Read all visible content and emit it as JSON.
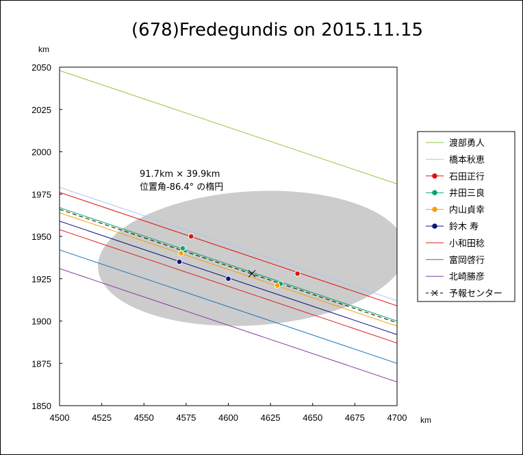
{
  "chart_data": {
    "type": "line",
    "title": "(678)Fredegundis on 2015.11.15",
    "xlabel": "km",
    "ylabel": "km",
    "xlim": [
      4500,
      4700
    ],
    "ylim": [
      1850,
      2050
    ],
    "xticks": [
      4500,
      4525,
      4550,
      4575,
      4600,
      4625,
      4650,
      4675,
      4700
    ],
    "yticks": [
      1850,
      1875,
      1900,
      1925,
      1950,
      1975,
      2000,
      2025,
      2050
    ],
    "grid": false,
    "legend_position": "right",
    "annotation": [
      "91.7km × 39.9km",
      "位置角-86.4° の楕円"
    ],
    "ellipse": {
      "center": [
        4614,
        1937
      ],
      "rx": 91.7,
      "ry": 39.9,
      "rotation_deg": -3.6,
      "fill": "#cccccc",
      "label": "91.7km × 39.9km 位置角-86.4° の楕円"
    },
    "series": [
      {
        "name": "渡部勇人",
        "color": "#8cc63f",
        "x": [
          4500,
          4700
        ],
        "y": [
          2048,
          1981
        ],
        "points": [],
        "dashed": false
      },
      {
        "name": "橋本秋恵",
        "color": "#a7c8ef",
        "x": [
          4500,
          4700
        ],
        "y": [
          1979,
          1912
        ],
        "points": [],
        "dashed": false
      },
      {
        "name": "石田正行",
        "color": "#e01010",
        "x": [
          4500,
          4700
        ],
        "y": [
          1976,
          1909
        ],
        "points": [
          [
            4578,
            1950
          ],
          [
            4641,
            1928
          ]
        ],
        "dashed": false
      },
      {
        "name": "井田三良",
        "color": "#00a86b",
        "x": [
          4500,
          4700
        ],
        "y": [
          1967,
          1900
        ],
        "points": [
          [
            4573,
            1943
          ],
          [
            4631,
            1922
          ]
        ],
        "dashed": false
      },
      {
        "name": "内山貞幸",
        "color": "#f5a000",
        "x": [
          4500,
          4700
        ],
        "y": [
          1964,
          1897
        ],
        "points": [
          [
            4572,
            1940
          ],
          [
            4629,
            1921
          ]
        ],
        "dashed": false
      },
      {
        "name": "鈴木 寿",
        "color": "#101080",
        "x": [
          4500,
          4700
        ],
        "y": [
          1959,
          1892
        ],
        "points": [
          [
            4571,
            1935
          ],
          [
            4600,
            1925
          ]
        ],
        "dashed": false
      },
      {
        "name": "小和田稔",
        "color": "#e02020",
        "x": [
          4500,
          4700
        ],
        "y": [
          1954,
          1887
        ],
        "points": [],
        "dashed": false
      },
      {
        "name": "富岡啓行",
        "color": "#1a78c2",
        "x": [
          4500,
          4700
        ],
        "y": [
          1942,
          1875
        ],
        "points": [],
        "dashed": false
      },
      {
        "name": "北崎勝彦",
        "color": "#7b3fa0",
        "x": [
          4500,
          4700
        ],
        "y": [
          1931,
          1864
        ],
        "points": [],
        "dashed": false
      },
      {
        "name": "予報センター",
        "color": "#000000",
        "x": [
          4500,
          4700
        ],
        "y": [
          1966,
          1899
        ],
        "points": [
          [
            4614,
            1928
          ]
        ],
        "dashed": true
      }
    ]
  }
}
